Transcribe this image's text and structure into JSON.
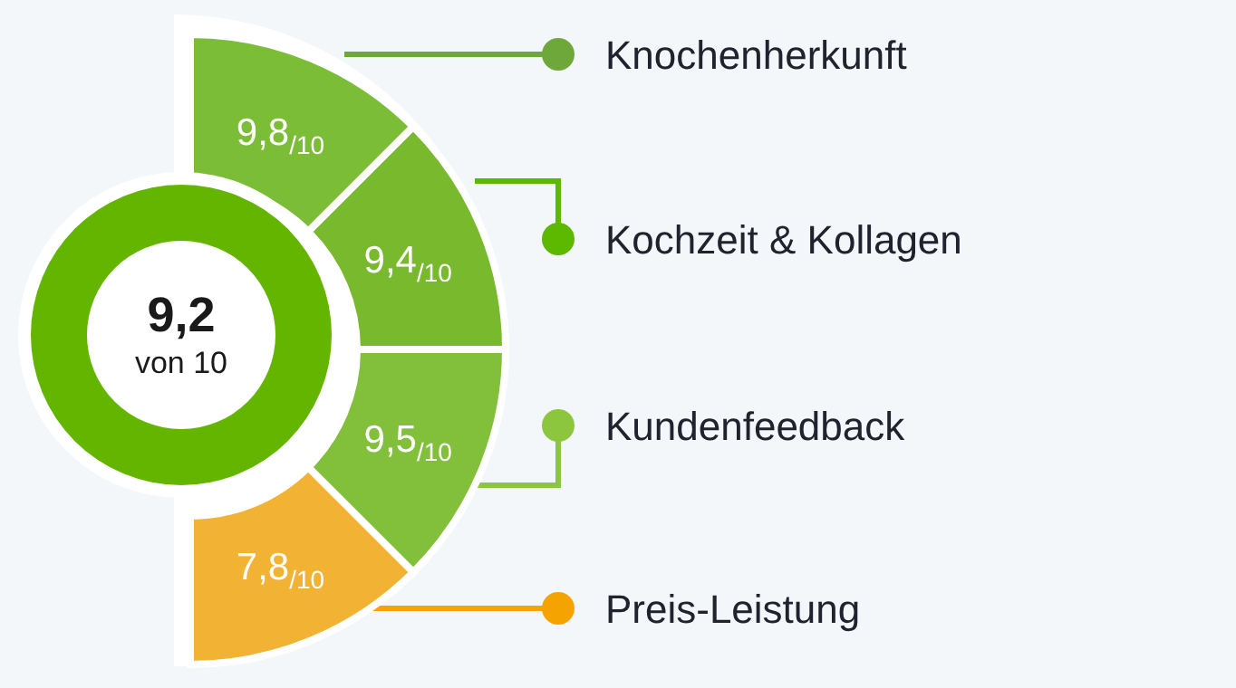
{
  "chart_data": {
    "type": "other",
    "categories": [
      "Knochenherkunft",
      "Kochzeit & Kollagen",
      "Kundenfeedback",
      "Preis-Leistung"
    ],
    "values": [
      9.8,
      9.4,
      9.5,
      7.8
    ],
    "value_labels": [
      "9,8$_{/10}$",
      "9,4$_{/10}$",
      "9,5$_{/10}$",
      "7,8$_{/10}$"
    ],
    "colors": [
      "#7cbd38",
      "#78b92e",
      "#82c03c",
      "#f2b233"
    ],
    "annotations": [
      "9,2",
      "von 10"
    ]
  }
}
